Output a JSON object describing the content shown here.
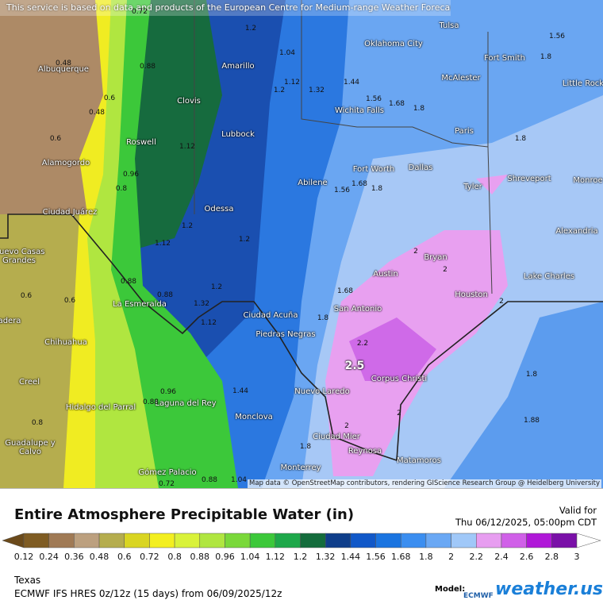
{
  "attribution": "This service is based on data and products of the European Centre for Medium-range Weather Forecasts (ECMWF)",
  "map": {
    "cities": [
      "Albuquerque",
      "Amarillo",
      "Clovis",
      "Lubbock",
      "Roswell",
      "Alamogordo",
      "Ciudad Juárez",
      "Odessa",
      "Abilene",
      "Fort Worth",
      "Dallas",
      "Wichita Falls",
      "Oklahoma City",
      "Tulsa",
      "McAlester",
      "Fort Smith",
      "Little Rock",
      "Paris",
      "Tyler",
      "Shreveport",
      "Monroe",
      "Alexandria",
      "Bryan",
      "Austin",
      "Lake Charles",
      "Houston",
      "San Antonio",
      "Ciudad Acuña",
      "Piedras Negras",
      "Corpus Christi",
      "Nuevo Laredo",
      "Monclova",
      "Ciudad Mier",
      "Reynosa",
      "Matamoros",
      "Monterrey",
      "Gómez Palacio",
      "La Esmeralda",
      "Chihuahua",
      "Nuevo Casas Grandes",
      "adera",
      "Creel",
      "Hidalgo del Parral",
      "Laguna del Rey",
      "Guadalupe y Calvo"
    ],
    "contour_labels": [
      0.72,
      1.2,
      1.04,
      0.48,
      0.88,
      1.56,
      1.8,
      1.44,
      1.12,
      1.32,
      1.2,
      0.6,
      0.48,
      1.56,
      1.68,
      1.8,
      0.6,
      1.12,
      0.96,
      0.8,
      1.56,
      1.68,
      1.8,
      1.8,
      1.2,
      1.2,
      1.12,
      2,
      2,
      0.88,
      0.88,
      1.68,
      1.2,
      1.32,
      0.6,
      0.6,
      1.12,
      1.8,
      2.2,
      2.5,
      2,
      1.8,
      1.88,
      0.96,
      0.88,
      1.44,
      2,
      2,
      0.8,
      0.88,
      0.72,
      1.04,
      1.8
    ],
    "credit": "Map data © OpenStreetMap contributors, rendering GIScience Research Group @ Heidelberg University"
  },
  "legend": {
    "title": "Entire Atmosphere Precipitable Water (in)",
    "valid_label": "Valid for",
    "valid_time": "Thu 06/12/2025, 05:00pm CDT",
    "ticks": [
      0.12,
      0.24,
      0.36,
      0.48,
      0.6,
      0.72,
      0.8,
      0.88,
      0.96,
      1.04,
      1.12,
      1.2,
      1.32,
      1.44,
      1.56,
      1.68,
      1.8,
      2,
      2.2,
      2.4,
      2.6,
      2.8,
      3
    ],
    "colors": [
      "#6b4a1a",
      "#7f5c23",
      "#a07a55",
      "#bca07f",
      "#b5ad4e",
      "#d9d522",
      "#f3ef20",
      "#d9f23a",
      "#b0e640",
      "#7ad83a",
      "#3cc83a",
      "#1ea84a",
      "#146c3c",
      "#0f3e8a",
      "#1158c8",
      "#1a74e0",
      "#3b8ef0",
      "#6aa8f4",
      "#a0c8f8",
      "#e79ef0",
      "#d060e8",
      "#b018d8",
      "#7a10a8",
      "#4a0a78",
      "#aaaaaa",
      "#ffffff"
    ]
  },
  "footer": {
    "region": "Texas",
    "model_run": "ECMWF IFS HRES 0z/12z (15 days) from 06/09/2025/12z",
    "model_label": "Model:",
    "model_logo": "ECMWF",
    "brand": "weather.us"
  }
}
